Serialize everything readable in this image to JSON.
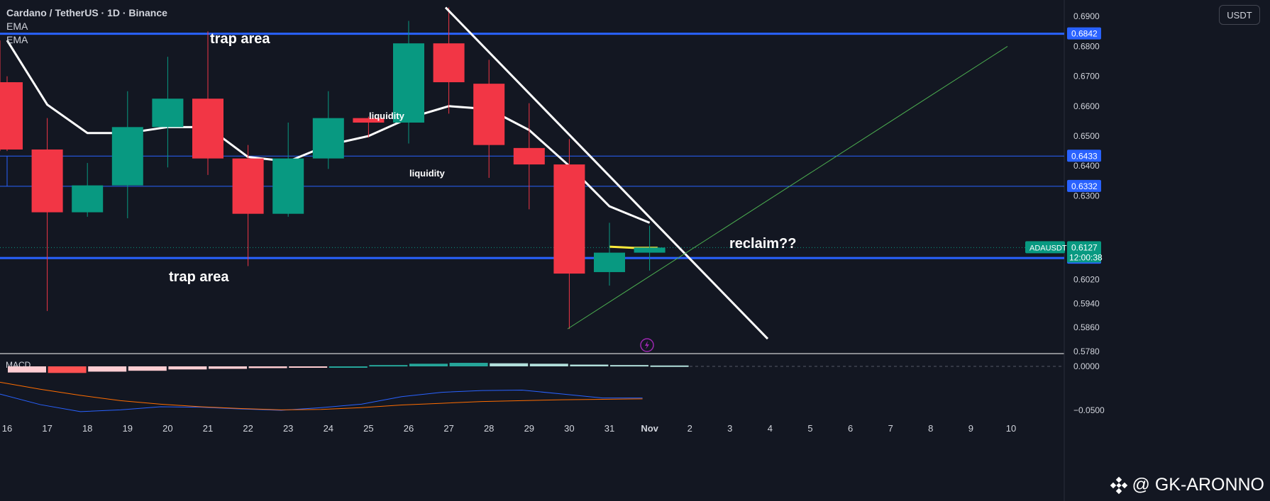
{
  "header": {
    "symbol_line": "Cardano / TetherUS · 1D · Binance",
    "indicators": [
      "EMA",
      "EMA"
    ],
    "currency_button": "USDT"
  },
  "watermark": {
    "text": "@ GK-ARONNO"
  },
  "macd_label": "MACD",
  "colors": {
    "background": "#131722",
    "up": "#089981",
    "down": "#f23645",
    "level_line": "#2962ff",
    "ema": "#ffffff",
    "ema_recent": "#ffeb3b",
    "trendline": "#ffffff",
    "channel": "#4caf50",
    "macd_line": "#2962ff",
    "signal_line": "#ff6d00"
  },
  "chart_data": {
    "type": "candlestick",
    "symbol": "ADAUSDT",
    "title": "Cardano / TetherUS · 1D · Binance",
    "x_labels": [
      "16",
      "17",
      "18",
      "19",
      "20",
      "21",
      "22",
      "23",
      "24",
      "25",
      "26",
      "27",
      "28",
      "29",
      "30",
      "31",
      "Nov",
      "2",
      "3",
      "4",
      "5",
      "6",
      "7",
      "8",
      "9",
      "10"
    ],
    "y_ticks": [
      0.578,
      0.586,
      0.594,
      0.602,
      0.63,
      0.64,
      0.65,
      0.66,
      0.67,
      0.68,
      0.69
    ],
    "y_tick_labels": [
      "0.5780",
      "0.5860",
      "0.5940",
      "0.6020",
      "0.6300",
      "0.6400",
      "0.6500",
      "0.6600",
      "0.6700",
      "0.6800",
      "0.6900"
    ],
    "ylim": [
      0.577,
      0.6955
    ],
    "candles": [
      {
        "x": "16",
        "o": 0.6655,
        "h": 0.682,
        "l": 0.645,
        "c": 0.668,
        "color": "down"
      },
      {
        "x": "16",
        "o": 0.668,
        "h": 0.67,
        "l": 0.645,
        "c": 0.6455,
        "color": "down"
      },
      {
        "x": "17",
        "o": 0.6455,
        "h": 0.656,
        "l": 0.5915,
        "c": 0.6245,
        "color": "down"
      },
      {
        "x": "18",
        "o": 0.6245,
        "h": 0.641,
        "l": 0.623,
        "c": 0.6335,
        "color": "up"
      },
      {
        "x": "19",
        "o": 0.6335,
        "h": 0.665,
        "l": 0.6225,
        "c": 0.653,
        "color": "up"
      },
      {
        "x": "20",
        "o": 0.653,
        "h": 0.6765,
        "l": 0.6395,
        "c": 0.6625,
        "color": "up"
      },
      {
        "x": "21",
        "o": 0.6625,
        "h": 0.685,
        "l": 0.637,
        "c": 0.6425,
        "color": "down"
      },
      {
        "x": "22",
        "o": 0.6425,
        "h": 0.647,
        "l": 0.6065,
        "c": 0.624,
        "color": "down"
      },
      {
        "x": "23",
        "o": 0.624,
        "h": 0.6545,
        "l": 0.623,
        "c": 0.6425,
        "color": "up"
      },
      {
        "x": "24",
        "o": 0.6425,
        "h": 0.665,
        "l": 0.639,
        "c": 0.656,
        "color": "up"
      },
      {
        "x": "25",
        "o": 0.656,
        "h": 0.6565,
        "l": 0.6495,
        "c": 0.6545,
        "color": "down"
      },
      {
        "x": "26",
        "o": 0.6545,
        "h": 0.6885,
        "l": 0.6475,
        "c": 0.681,
        "color": "up"
      },
      {
        "x": "27",
        "o": 0.681,
        "h": 0.693,
        "l": 0.6575,
        "c": 0.668,
        "color": "down"
      },
      {
        "x": "28",
        "o": 0.6675,
        "h": 0.6755,
        "l": 0.636,
        "c": 0.647,
        "color": "down"
      },
      {
        "x": "29",
        "o": 0.646,
        "h": 0.661,
        "l": 0.6255,
        "c": 0.6405,
        "color": "down"
      },
      {
        "x": "30",
        "o": 0.6405,
        "h": 0.649,
        "l": 0.5855,
        "c": 0.604,
        "color": "down"
      },
      {
        "x": "31",
        "o": 0.6045,
        "h": 0.621,
        "l": 0.6,
        "c": 0.611,
        "color": "up"
      },
      {
        "x": "Nov",
        "o": 0.611,
        "h": 0.62,
        "l": 0.605,
        "c": 0.6127,
        "color": "up"
      }
    ],
    "ema": {
      "name": "EMA",
      "values": [
        0.682,
        0.6605,
        0.651,
        0.651,
        0.653,
        0.653,
        0.643,
        0.6415,
        0.647,
        0.65,
        0.656,
        0.66,
        0.659,
        0.652,
        0.64,
        0.6265,
        0.621
      ],
      "x_index": [
        0,
        1,
        2,
        3,
        4,
        5,
        6,
        7,
        8,
        9,
        10,
        11,
        12,
        13,
        14,
        15,
        16
      ],
      "recent_values": [
        0.613,
        0.6126,
        0.6126
      ]
    },
    "horizontal_levels": [
      {
        "value": 0.6842,
        "label": "0.6842",
        "style": "thick"
      },
      {
        "value": 0.6433,
        "label": "0.6433",
        "style": "thin"
      },
      {
        "value": 0.6332,
        "label": "0.6332",
        "style": "thin"
      },
      {
        "value": 0.6092,
        "label": "0.6092",
        "style": "thick"
      }
    ],
    "current_price": {
      "symbol": "ADAUSDT",
      "value": "0.6127",
      "countdown": "12:00:38"
    },
    "annotations": [
      {
        "text": "trap area"
      },
      {
        "text": "trap area"
      },
      {
        "text": "liquidity"
      },
      {
        "text": "liquidity"
      },
      {
        "text": "reclaim??"
      }
    ],
    "macd": {
      "label": "MACD",
      "y_tick_labels": [
        "0.0000",
        "−0.0500"
      ],
      "histogram": [
        -0.007,
        -0.0075,
        -0.006,
        -0.005,
        -0.0035,
        -0.0028,
        -0.002,
        -0.001,
        0.0,
        0.0015,
        0.003,
        0.004,
        0.0035,
        0.003,
        0.002,
        0.0015,
        0.001
      ],
      "macd_line": [
        -0.0315,
        -0.0435,
        -0.0515,
        -0.0495,
        -0.046,
        -0.0465,
        -0.0485,
        -0.05,
        -0.047,
        -0.043,
        -0.0345,
        -0.0295,
        -0.0275,
        -0.027,
        -0.0315,
        -0.036,
        -0.036
      ],
      "signal_line": [
        -0.018,
        -0.026,
        -0.033,
        -0.039,
        -0.043,
        -0.046,
        -0.048,
        -0.0495,
        -0.049,
        -0.047,
        -0.044,
        -0.042,
        -0.04,
        -0.039,
        -0.038,
        -0.0375,
        -0.037
      ]
    }
  }
}
